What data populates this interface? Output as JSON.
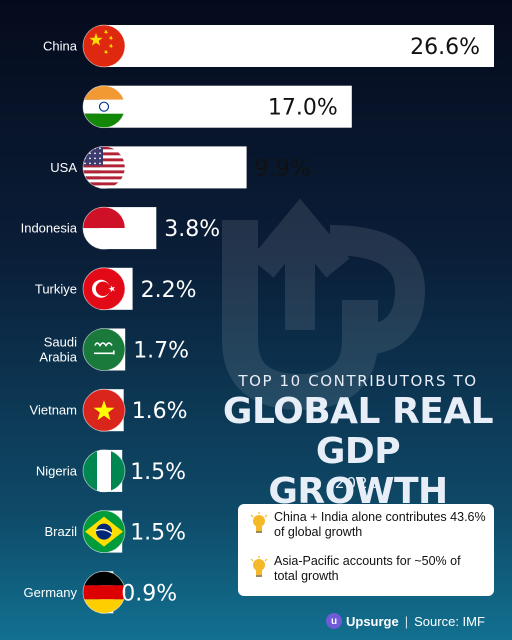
{
  "heading": {
    "pre": "TOP 10 CONTRIBUTORS TO",
    "line1": "GLOBAL REAL",
    "line2": "GDP GROWTH",
    "year": "2026"
  },
  "notes": [
    "China + India alone contributes 43.6% of global growth",
    "Asia-Pacific accounts for ~50% of total growth"
  ],
  "footer": {
    "brand": "Upsurge",
    "source": "Source: IMF"
  },
  "chart_data": {
    "type": "bar",
    "orientation": "horizontal",
    "categories": [
      "China",
      "India",
      "USA",
      "Indonesia",
      "Turkiye",
      "Saudi Arabia",
      "Vietnam",
      "Nigeria",
      "Brazil",
      "Germany"
    ],
    "values": [
      26.6,
      17.0,
      9.9,
      3.8,
      2.2,
      1.7,
      1.6,
      1.5,
      1.5,
      0.9
    ],
    "value_labels": [
      "26.6%",
      "17.0%",
      "9.9%",
      "3.8%",
      "2.2%",
      "1.7%",
      "1.6%",
      "1.5%",
      "1.5%",
      "0.9%"
    ],
    "category_labels": [
      "China",
      "",
      "USA",
      "Indonesia",
      "Turkiye",
      "Saudi\nArabia",
      "Vietnam",
      "Nigeria",
      "Brazil",
      "Germany"
    ],
    "flag_icons": [
      "china-flag-icon",
      "india-flag-icon",
      "usa-flag-icon",
      "indonesia-flag-icon",
      "turkiye-flag-icon",
      "saudi-arabia-flag-icon",
      "vietnam-flag-icon",
      "nigeria-flag-icon",
      "brazil-flag-icon",
      "germany-flag-icon"
    ],
    "bar_color": "#ffffff",
    "value_label_colors": [
      "#111111",
      "#111111",
      "#111111",
      "#ffffff",
      "#ffffff",
      "#ffffff",
      "#ffffff",
      "#ffffff",
      "#ffffff",
      "#ffffff"
    ]
  }
}
